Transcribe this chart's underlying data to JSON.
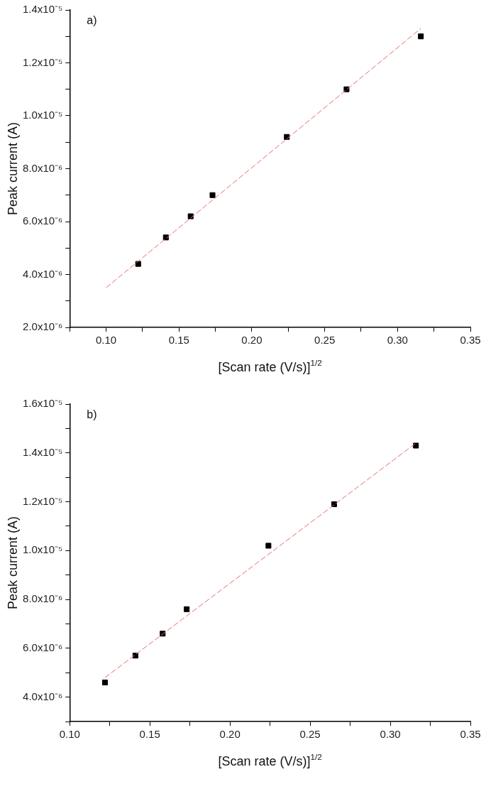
{
  "chart_data": [
    {
      "type": "scatter",
      "annotations": [
        "a)"
      ],
      "xlabel": "[Scan rate (V/s)]$^{1/2}$",
      "ylabel": "Peak current (A)",
      "xlim": [
        0.075,
        0.35
      ],
      "ylim": [
        2e-06,
        1.4e-05
      ],
      "xticks": [
        {
          "value": 0.075,
          "label": null
        },
        {
          "value": 0.1,
          "label": "0.10"
        },
        {
          "value": 0.125,
          "label": null
        },
        {
          "value": 0.15,
          "label": "0.15"
        },
        {
          "value": 0.175,
          "label": null
        },
        {
          "value": 0.2,
          "label": "0.20"
        },
        {
          "value": 0.225,
          "label": null
        },
        {
          "value": 0.25,
          "label": "0.25"
        },
        {
          "value": 0.275,
          "label": null
        },
        {
          "value": 0.3,
          "label": "0.30"
        },
        {
          "value": 0.325,
          "label": null
        },
        {
          "value": 0.35,
          "label": "0.35"
        }
      ],
      "yticks": [
        {
          "value": 2e-06,
          "label": "2.0x10⁻⁶"
        },
        {
          "value": 3e-06,
          "label": null
        },
        {
          "value": 4e-06,
          "label": "4.0x10⁻⁶"
        },
        {
          "value": 5e-06,
          "label": null
        },
        {
          "value": 6e-06,
          "label": "6.0x10⁻⁶"
        },
        {
          "value": 7e-06,
          "label": null
        },
        {
          "value": 8e-06,
          "label": "8.0x10⁻⁶"
        },
        {
          "value": 9e-06,
          "label": null
        },
        {
          "value": 1e-05,
          "label": "1.0x10⁻⁵"
        },
        {
          "value": 1.1e-05,
          "label": null
        },
        {
          "value": 1.2e-05,
          "label": "1.2x10⁻⁵"
        },
        {
          "value": 1.3e-05,
          "label": null
        },
        {
          "value": 1.4e-05,
          "label": "1.4x10⁻⁵"
        }
      ],
      "grid": false,
      "legend": false,
      "series": [
        {
          "type": "line",
          "color": "#e07070",
          "line_style": "dashed",
          "marker": "none",
          "x": [
            0.1,
            0.316
          ],
          "values": [
            3.5e-06,
            1.33e-05
          ]
        },
        {
          "type": "scatter",
          "color": "#000000",
          "marker": "square",
          "x": [
            0.122,
            0.141,
            0.158,
            0.173,
            0.224,
            0.265,
            0.316
          ],
          "values": [
            4.4e-06,
            5.4e-06,
            6.2e-06,
            7e-06,
            9.2e-06,
            1.1e-05,
            1.3e-05
          ]
        }
      ]
    },
    {
      "type": "scatter",
      "annotations": [
        "b)"
      ],
      "xlabel": "[Scan rate (V/s)]$^{1/2}$",
      "ylabel": "Peak current (A)",
      "xlim": [
        0.1,
        0.35
      ],
      "ylim": [
        3e-06,
        1.6e-05
      ],
      "xticks": [
        {
          "value": 0.1,
          "label": "0.10"
        },
        {
          "value": 0.125,
          "label": null
        },
        {
          "value": 0.15,
          "label": "0.15"
        },
        {
          "value": 0.175,
          "label": null
        },
        {
          "value": 0.2,
          "label": "0.20"
        },
        {
          "value": 0.225,
          "label": null
        },
        {
          "value": 0.25,
          "label": "0.25"
        },
        {
          "value": 0.275,
          "label": null
        },
        {
          "value": 0.3,
          "label": "0.30"
        },
        {
          "value": 0.325,
          "label": null
        },
        {
          "value": 0.35,
          "label": "0.35"
        }
      ],
      "yticks": [
        {
          "value": 3e-06,
          "label": null
        },
        {
          "value": 4e-06,
          "label": "4.0x10⁻⁶"
        },
        {
          "value": 5e-06,
          "label": null
        },
        {
          "value": 6e-06,
          "label": "6.0x10⁻⁶"
        },
        {
          "value": 7e-06,
          "label": null
        },
        {
          "value": 8e-06,
          "label": "8.0x10⁻⁶"
        },
        {
          "value": 9e-06,
          "label": null
        },
        {
          "value": 1e-05,
          "label": "1.0x10⁻⁵"
        },
        {
          "value": 1.1e-05,
          "label": null
        },
        {
          "value": 1.2e-05,
          "label": "1.2x10⁻⁵"
        },
        {
          "value": 1.3e-05,
          "label": null
        },
        {
          "value": 1.4e-05,
          "label": "1.4x10⁻⁵"
        },
        {
          "value": 1.5e-05,
          "label": null
        },
        {
          "value": 1.6e-05,
          "label": "1.6x10⁻⁵"
        }
      ],
      "grid": false,
      "legend": false,
      "series": [
        {
          "type": "line",
          "color": "#e07070",
          "line_style": "dashed",
          "marker": "none",
          "x": [
            0.122,
            0.316
          ],
          "values": [
            4.8e-06,
            1.44e-05
          ]
        },
        {
          "type": "scatter",
          "color": "#000000",
          "marker": "square",
          "x": [
            0.122,
            0.141,
            0.158,
            0.173,
            0.224,
            0.265,
            0.316
          ],
          "values": [
            4.6e-06,
            5.7e-06,
            6.6e-06,
            7.6e-06,
            1.02e-05,
            1.19e-05,
            1.43e-05
          ]
        }
      ]
    }
  ]
}
